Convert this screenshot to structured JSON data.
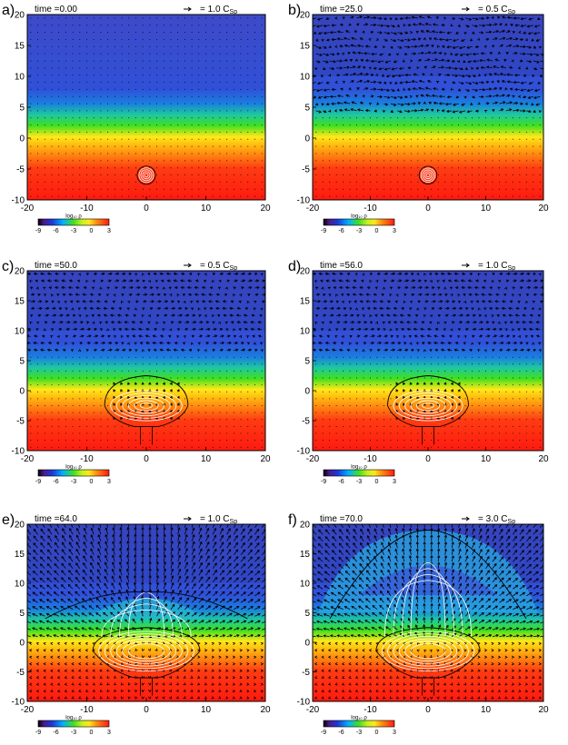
{
  "figure": {
    "colorbar_label": "log₁₀ ρ",
    "colorbar_ticks": [
      "-9",
      "-6",
      "-3",
      "0",
      "3"
    ],
    "panels": [
      {
        "letter": "a)",
        "time": "time =0.00",
        "scale": "= 1.0 C",
        "scale_sub": "Sp",
        "stage": 0
      },
      {
        "letter": "b)",
        "time": "time =25.0",
        "scale": "= 0.5 C",
        "scale_sub": "Sp",
        "stage": 1
      },
      {
        "letter": "c)",
        "time": "time =50.0",
        "scale": "= 0.5 C",
        "scale_sub": "Sp",
        "stage": 2
      },
      {
        "letter": "d)",
        "time": "time =56.0",
        "scale": "= 1.0 C",
        "scale_sub": "Sp",
        "stage": 3
      },
      {
        "letter": "e)",
        "time": "time =64.0",
        "scale": "= 1.0 C",
        "scale_sub": "Sp",
        "stage": 4
      },
      {
        "letter": "f)",
        "time": "time =70.0",
        "scale": "= 3.0 C",
        "scale_sub": "Sp",
        "stage": 5
      }
    ],
    "colors": {
      "density_stops": [
        "#ff1a10",
        "#ff3b12",
        "#ffc010",
        "#ffe81a",
        "#40e020",
        "#1ec8a0",
        "#1a7fe0",
        "#3050d8",
        "#3e4ac8"
      ]
    }
  },
  "chart_data": [
    {
      "type": "heatmap",
      "panel": "a)",
      "time": 0.0,
      "xlim": [
        -20,
        20
      ],
      "ylim": [
        -10,
        20
      ],
      "x_ticks": [
        -20,
        -10,
        0,
        10,
        20
      ],
      "y_ticks": [
        -10,
        -5,
        0,
        5,
        10,
        15,
        20
      ],
      "velocity_scale": "1.0 C_Sp",
      "colorbar": {
        "label": "log10 rho",
        "range": [
          -9,
          3
        ],
        "ticks": [
          -9,
          -6,
          -3,
          0,
          3
        ]
      }
    },
    {
      "type": "heatmap",
      "panel": "b)",
      "time": 25.0,
      "xlim": [
        -20,
        20
      ],
      "ylim": [
        -10,
        20
      ],
      "x_ticks": [
        -20,
        -10,
        0,
        10,
        20
      ],
      "y_ticks": [
        -10,
        -5,
        0,
        5,
        10,
        15,
        20
      ],
      "velocity_scale": "0.5 C_Sp",
      "colorbar": {
        "label": "log10 rho",
        "range": [
          -9,
          3
        ],
        "ticks": [
          -9,
          -6,
          -3,
          0,
          3
        ]
      }
    },
    {
      "type": "heatmap",
      "panel": "c)",
      "time": 50.0,
      "xlim": [
        -20,
        20
      ],
      "ylim": [
        -10,
        20
      ],
      "x_ticks": [
        -20,
        -10,
        0,
        10,
        20
      ],
      "y_ticks": [
        -10,
        -5,
        0,
        5,
        10,
        15,
        20
      ],
      "velocity_scale": "0.5 C_Sp",
      "colorbar": {
        "label": "log10 rho",
        "range": [
          -9,
          3
        ],
        "ticks": [
          -9,
          -6,
          -3,
          0,
          3
        ]
      }
    },
    {
      "type": "heatmap",
      "panel": "d)",
      "time": 56.0,
      "xlim": [
        -20,
        20
      ],
      "ylim": [
        -10,
        20
      ],
      "x_ticks": [
        -20,
        -10,
        0,
        10,
        20
      ],
      "y_ticks": [
        -10,
        -5,
        0,
        5,
        10,
        15,
        20
      ],
      "velocity_scale": "1.0 C_Sp",
      "colorbar": {
        "label": "log10 rho",
        "range": [
          -9,
          3
        ],
        "ticks": [
          -9,
          -6,
          -3,
          0,
          3
        ]
      }
    },
    {
      "type": "heatmap",
      "panel": "e)",
      "time": 64.0,
      "xlim": [
        -20,
        20
      ],
      "ylim": [
        -10,
        20
      ],
      "x_ticks": [
        -20,
        -10,
        0,
        10,
        20
      ],
      "y_ticks": [
        -10,
        -5,
        0,
        5,
        10,
        15,
        20
      ],
      "velocity_scale": "1.0 C_Sp",
      "colorbar": {
        "label": "log10 rho",
        "range": [
          -9,
          3
        ],
        "ticks": [
          -9,
          -6,
          -3,
          0,
          3
        ]
      }
    },
    {
      "type": "heatmap",
      "panel": "f)",
      "time": 70.0,
      "xlim": [
        -20,
        20
      ],
      "ylim": [
        -10,
        20
      ],
      "x_ticks": [
        -20,
        -10,
        0,
        10,
        20
      ],
      "y_ticks": [
        -10,
        -5,
        0,
        5,
        10,
        15,
        20
      ],
      "velocity_scale": "3.0 C_Sp",
      "colorbar": {
        "label": "log10 rho",
        "range": [
          -9,
          3
        ],
        "ticks": [
          -9,
          -6,
          -3,
          0,
          3
        ]
      }
    }
  ]
}
